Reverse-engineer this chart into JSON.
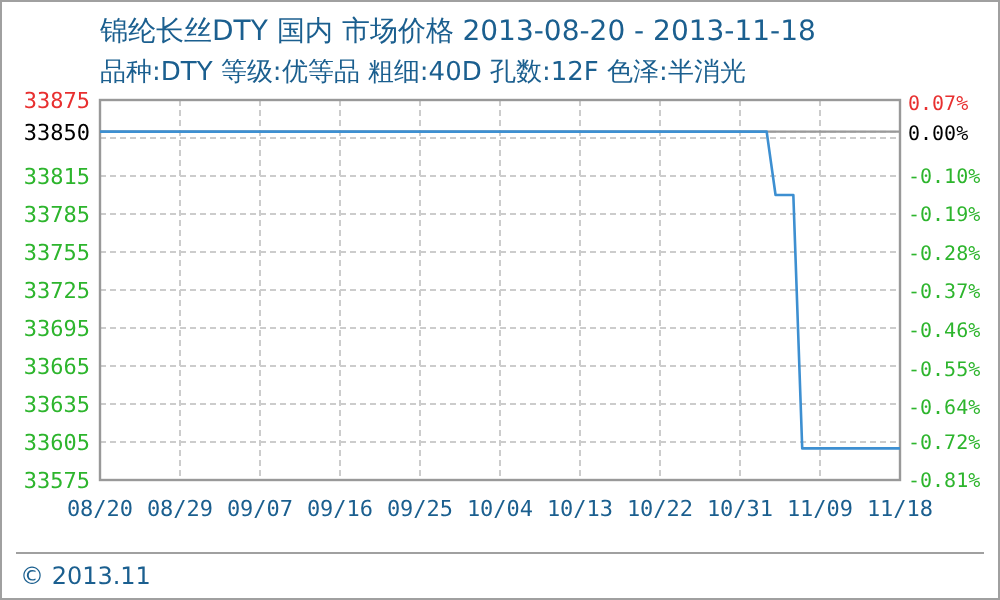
{
  "chart_data": {
    "type": "line",
    "title": "锦纶长丝DTY 国内 市场价格 2013-08-20 - 2013-11-18",
    "subtitle": "品种:DTY 等级:优等品 粗细:40D 孔数:12F 色泽:半消光",
    "annotations": [
      "© 2013.11"
    ],
    "x": [
      "2013-08-20",
      "2013-11-03",
      "2013-11-04",
      "2013-11-06",
      "2013-11-07",
      "2013-11-18"
    ],
    "series": [
      {
        "color": "#3d8fd1",
        "values": [
          33850,
          33850,
          33800,
          33800,
          33600,
          33600
        ]
      }
    ],
    "xlim": [
      "2013-08-20",
      "2013-11-18"
    ],
    "xticks": [
      {
        "value": "2013-08-20",
        "label": "08/20"
      },
      {
        "value": "2013-08-29",
        "label": "08/29"
      },
      {
        "value": "2013-09-07",
        "label": "09/07"
      },
      {
        "value": "2013-09-16",
        "label": "09/16"
      },
      {
        "value": "2013-09-25",
        "label": "09/25"
      },
      {
        "value": "2013-10-04",
        "label": "10/04"
      },
      {
        "value": "2013-10-13",
        "label": "10/13"
      },
      {
        "value": "2013-10-22",
        "label": "10/22"
      },
      {
        "value": "2013-10-31",
        "label": "10/31"
      },
      {
        "value": "2013-11-09",
        "label": "11/09"
      },
      {
        "value": "2013-11-18",
        "label": "11/18"
      }
    ],
    "ylim": [
      33575,
      33875
    ],
    "yticks": [
      33875,
      33850,
      {
        "value": 33845,
        "label": null
      },
      33815,
      33785,
      33755,
      33725,
      33695,
      33665,
      33635,
      33605,
      33575
    ],
    "y2lim": [
      -0.812,
      0.074
    ],
    "y2ticks": [
      {
        "value": 0.07,
        "label": "0.07%"
      },
      {
        "value": 0,
        "label": "0.00%"
      },
      {
        "value": -0.1,
        "label": "-0.10%"
      },
      {
        "value": -0.19,
        "label": "-0.19%"
      },
      {
        "value": -0.28,
        "label": "-0.28%"
      },
      {
        "value": -0.37,
        "label": "-0.37%"
      },
      {
        "value": -0.46,
        "label": "-0.46%"
      },
      {
        "value": -0.55,
        "label": "-0.55%"
      },
      {
        "value": -0.64,
        "label": "-0.64%"
      },
      {
        "value": -0.72,
        "label": "-0.72%"
      },
      {
        "value": -0.81,
        "label": "-0.81%"
      }
    ],
    "ref_lines": [
      {
        "axis": "y",
        "value": 33850,
        "color": "#999999"
      }
    ],
    "grid": true,
    "marker": "none",
    "line_style": "solid"
  }
}
